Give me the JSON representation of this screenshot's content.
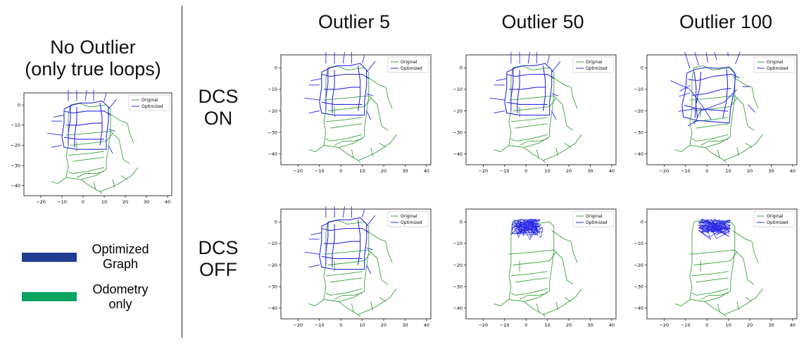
{
  "left_title": {
    "line1": "No Outlier",
    "line2": "(only true loops)"
  },
  "columns": [
    "Outlier 5",
    "Outlier 50",
    "Outlier 100"
  ],
  "rows": [
    {
      "line1": "DCS",
      "line2": "ON"
    },
    {
      "line1": "DCS",
      "line2": "OFF"
    }
  ],
  "figure_legend": [
    {
      "line1": "Optimized",
      "line2": "Graph",
      "color": "#1f3d91"
    },
    {
      "line1": "Odometry",
      "line2": "only",
      "color": "#0aa35f"
    }
  ],
  "colors": {
    "original": "#3aa53a",
    "optimized": "#2a2ae6"
  },
  "chart_data": [
    {
      "panel": "no-outlier",
      "type": "line",
      "series": [
        {
          "name": "Original"
        },
        {
          "name": "Optimized"
        }
      ],
      "x_ticks": [
        -20,
        -10,
        0,
        10,
        20,
        30,
        40
      ],
      "y_ticks": [
        0,
        -10,
        -20,
        -30,
        -40
      ],
      "xlim": [
        -28,
        42
      ],
      "ylim": [
        -45,
        6
      ],
      "optimized_state": "aligned",
      "legend": "top-right"
    },
    {
      "panel": "outlier-5-dcs-on",
      "type": "line",
      "series": [
        {
          "name": "Original"
        },
        {
          "name": "Optimized"
        }
      ],
      "x_ticks": [
        -20,
        -10,
        0,
        10,
        20,
        30,
        40
      ],
      "y_ticks": [
        0,
        -10,
        -20,
        -30,
        -40
      ],
      "xlim": [
        -28,
        42
      ],
      "ylim": [
        -45,
        6
      ],
      "optimized_state": "aligned",
      "legend": "top-right"
    },
    {
      "panel": "outlier-50-dcs-on",
      "type": "line",
      "series": [
        {
          "name": "Original"
        },
        {
          "name": "Optimized"
        }
      ],
      "x_ticks": [
        -20,
        -10,
        0,
        10,
        20,
        30,
        40
      ],
      "y_ticks": [
        0,
        -10,
        -20,
        -30,
        -40
      ],
      "xlim": [
        -28,
        42
      ],
      "ylim": [
        -45,
        6
      ],
      "optimized_state": "aligned",
      "legend": "top-right"
    },
    {
      "panel": "outlier-100-dcs-on",
      "type": "line",
      "series": [
        {
          "name": "Original"
        },
        {
          "name": "Optimized"
        }
      ],
      "x_ticks": [
        -20,
        -10,
        0,
        10,
        20,
        30,
        40
      ],
      "y_ticks": [
        0,
        -10,
        -20,
        -30,
        -40
      ],
      "xlim": [
        -28,
        42
      ],
      "ylim": [
        -45,
        6
      ],
      "optimized_state": "distorted",
      "legend": "top-right"
    },
    {
      "panel": "outlier-5-dcs-off",
      "type": "line",
      "series": [
        {
          "name": "Original"
        },
        {
          "name": "Optimized"
        }
      ],
      "x_ticks": [
        -20,
        -10,
        0,
        10,
        20,
        30,
        40
      ],
      "y_ticks": [
        0,
        -10,
        -20,
        -30,
        -40
      ],
      "xlim": [
        -28,
        42
      ],
      "ylim": [
        -45,
        6
      ],
      "optimized_state": "aligned",
      "legend": "top-right"
    },
    {
      "panel": "outlier-50-dcs-off",
      "type": "line",
      "series": [
        {
          "name": "Original"
        },
        {
          "name": "Optimized"
        }
      ],
      "x_ticks": [
        -20,
        -10,
        0,
        10,
        20,
        30,
        40
      ],
      "y_ticks": [
        0,
        -10,
        -20,
        -30,
        -40
      ],
      "xlim": [
        -28,
        42
      ],
      "ylim": [
        -45,
        6
      ],
      "optimized_state": "collapsed",
      "legend": "top-right"
    },
    {
      "panel": "outlier-100-dcs-off",
      "type": "line",
      "series": [
        {
          "name": "Original"
        },
        {
          "name": "Optimized"
        }
      ],
      "x_ticks": [
        -20,
        -10,
        0,
        10,
        20,
        30,
        40
      ],
      "y_ticks": [
        0,
        -10,
        -20,
        -30,
        -40
      ],
      "xlim": [
        -28,
        42
      ],
      "ylim": [
        -45,
        6
      ],
      "optimized_state": "collapsed",
      "legend": "top-right"
    }
  ]
}
